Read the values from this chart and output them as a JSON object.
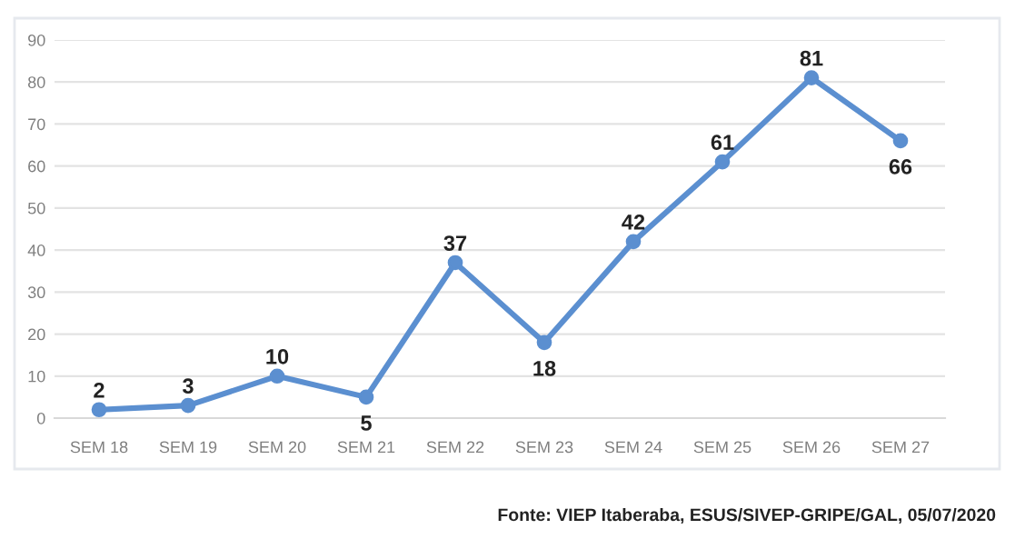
{
  "chart_data": {
    "type": "line",
    "categories": [
      "SEM 18",
      "SEM 19",
      "SEM 20",
      "SEM 21",
      "SEM 22",
      "SEM 23",
      "SEM 24",
      "SEM 25",
      "SEM 26",
      "SEM 27"
    ],
    "series": [
      {
        "color": "#5b8fd0",
        "values": [
          2,
          3,
          10,
          5,
          37,
          18,
          42,
          61,
          81,
          66
        ]
      }
    ],
    "ylim": [
      0,
      90
    ],
    "yticks": [
      0,
      10,
      20,
      30,
      40,
      50,
      60,
      70,
      80,
      90
    ],
    "grid": "y",
    "marker": "circle",
    "line_style": "solid",
    "data_labels": true,
    "annotations": [
      "Fonte: VIEP Itaberaba, ESUS/SIVEP-GRIPE/GAL, 05/07/2020"
    ]
  }
}
